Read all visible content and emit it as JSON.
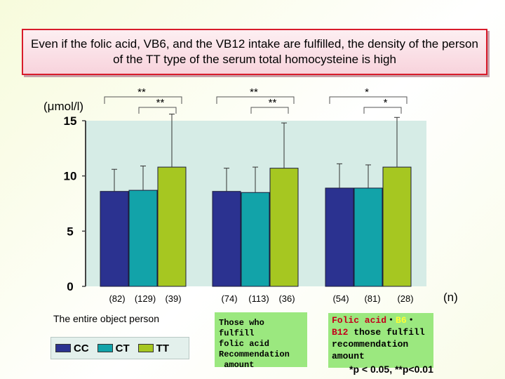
{
  "title": "Even if the folic acid, VB6, and the VB12 intake are fulfilled, the density of the person of the TT type of the serum total homocysteine is high",
  "unit_label": "(μmol/l)",
  "n_label": "(n)",
  "group_descriptions": {
    "g1": "The entire object person",
    "g2_lines": [
      "Those who fulfill",
      "folic acid",
      "Recommendation",
      " amount"
    ],
    "g3": {
      "part1": "Folic acid",
      "sep1": "・",
      "part2": "B6",
      "sep2": "・",
      "part3": "B12",
      "rest": " those fulfill recommendation amount"
    }
  },
  "legend": [
    {
      "label": "CC",
      "color": "#2b3290"
    },
    {
      "label": "CT",
      "color": "#12a3a9"
    },
    {
      "label": "TT",
      "color": "#a6c721"
    }
  ],
  "significance_note": "*p < 0.05,  **p<0.01",
  "chart_data": {
    "type": "bar",
    "ylim": [
      0,
      15
    ],
    "yticks": [
      "0",
      "5",
      "10",
      "15"
    ],
    "series_names": [
      "CC",
      "CT",
      "TT"
    ],
    "colors": [
      "#2b3290",
      "#12a3a9",
      "#a6c721"
    ],
    "groups": [
      {
        "values": [
          8.6,
          8.7,
          10.8
        ],
        "errors": [
          2.0,
          2.2,
          4.8
        ],
        "n_labels": [
          "(82)",
          "(129)",
          "(39)"
        ],
        "sig_top": "**",
        "sig_inner": "**"
      },
      {
        "values": [
          8.6,
          8.5,
          10.7
        ],
        "errors": [
          2.1,
          2.3,
          4.1
        ],
        "n_labels": [
          "(74)",
          "(113)",
          "(36)"
        ],
        "sig_top": "**",
        "sig_inner": "**"
      },
      {
        "values": [
          8.9,
          8.9,
          10.8
        ],
        "errors": [
          2.2,
          2.1,
          4.5
        ],
        "n_labels": [
          "(54)",
          "(81)",
          "(28)"
        ],
        "sig_top": "*",
        "sig_inner": "*"
      }
    ]
  }
}
